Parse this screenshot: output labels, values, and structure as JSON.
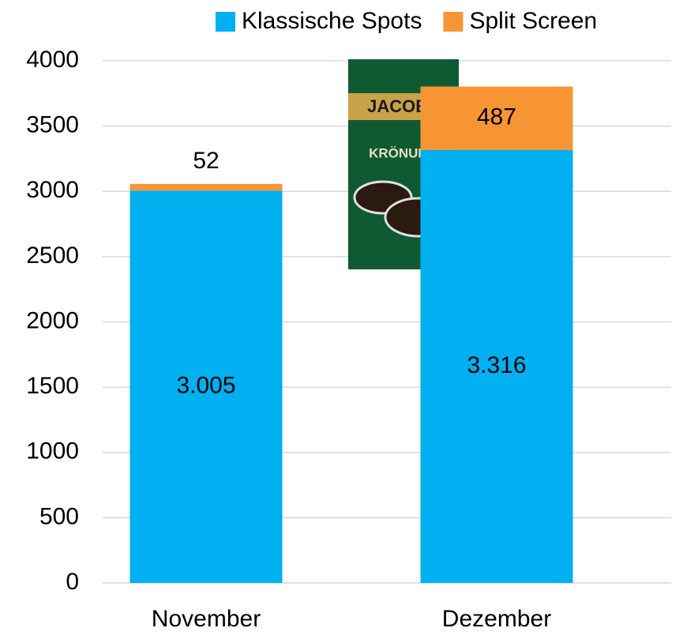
{
  "chart_data": {
    "type": "stacked_bar",
    "categories": [
      "November",
      "Dezember"
    ],
    "series": [
      {
        "name": "Klassische Spots",
        "color": "#00b0f0",
        "values": [
          3005,
          3316
        ],
        "value_labels": [
          "3.005",
          "3.316"
        ]
      },
      {
        "name": "Split Screen",
        "color": "#f79535",
        "values": [
          52,
          487
        ]
      }
    ],
    "ylim": [
      0,
      4000
    ],
    "yticks": [
      0,
      500,
      1000,
      1500,
      2000,
      2500,
      3000,
      3500,
      4000
    ],
    "grid": true,
    "legend": "top-right",
    "annotations": [
      "JACOBS",
      "KRÖNUNG"
    ]
  }
}
